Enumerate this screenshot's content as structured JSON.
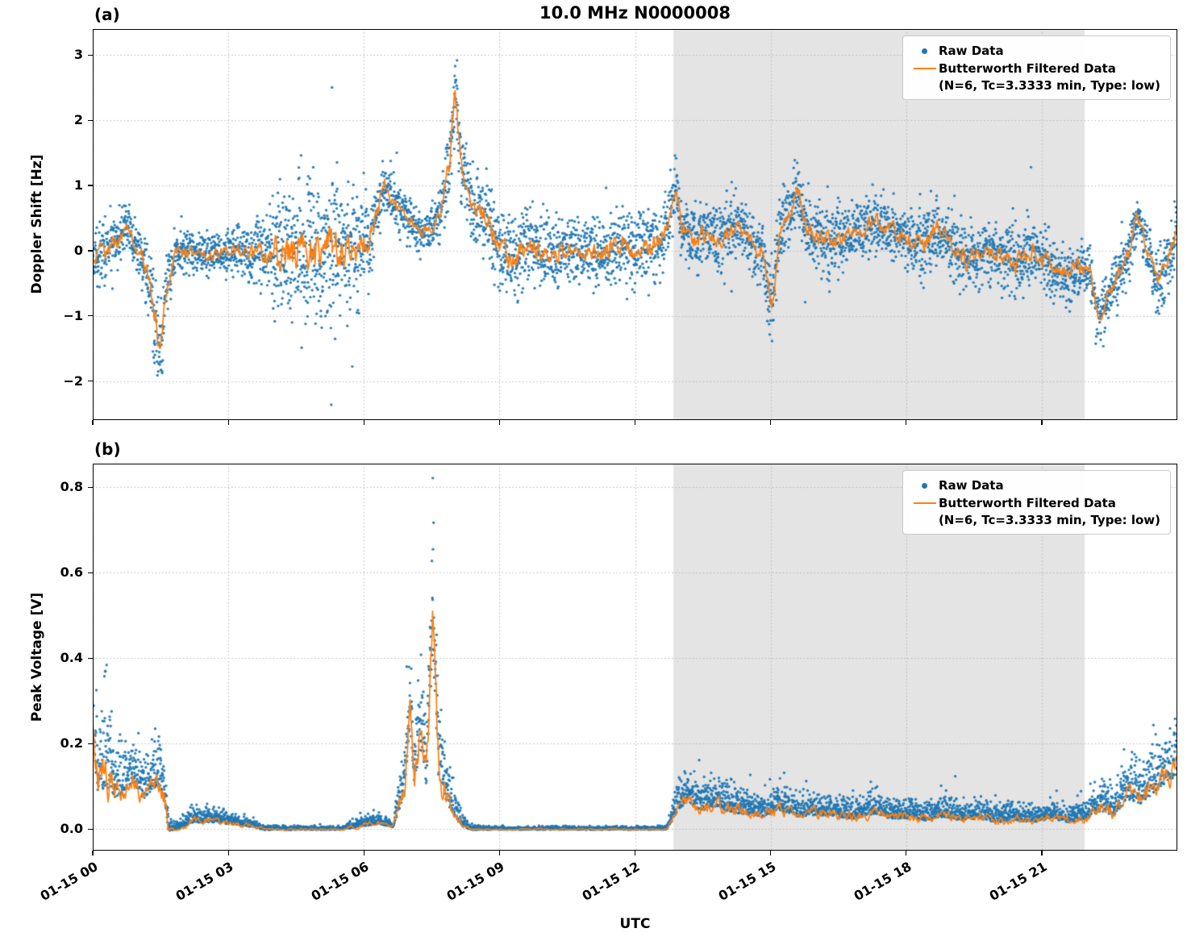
{
  "title": "10.0 MHz N0000008",
  "xlabel": "UTC",
  "legend": {
    "raw": "Raw Data",
    "filtered_line1": "Butterworth Filtered Data",
    "filtered_line2": "(N=6, Tc=3.3333 min, Type: low)"
  },
  "colors": {
    "raw": "#1f77b4",
    "filtered": "#ff7f0e",
    "shade": "#e4e4e4",
    "grid": "#b8b8b8",
    "axis": "#000000"
  },
  "chart_data": [
    {
      "type": "scatter",
      "panel_label": "(a)",
      "title": "10.0 MHz N0000008",
      "xlabel": "UTC",
      "ylabel": "Doppler Shift [Hz]",
      "x_unit": "hours since 01-15 00:00 UTC",
      "xlim": [
        0,
        24
      ],
      "ylim": [
        -2.6,
        3.4
      ],
      "yticks": [
        -2,
        -1,
        0,
        1,
        2,
        3
      ],
      "ytick_labels": [
        "−2",
        "−1",
        "0",
        "1",
        "2",
        "3"
      ],
      "x_ticks": [
        0,
        3,
        6,
        9,
        12,
        15,
        18,
        21
      ],
      "x_tick_labels": [
        "01-15 00",
        "01-15 03",
        "01-15 06",
        "01-15 09",
        "01-15 12",
        "01-15 15",
        "01-15 18",
        "01-15 21"
      ],
      "shaded_region": [
        12.85,
        21.95
      ],
      "grid": true,
      "legend_position": "upper right",
      "positive_only": false,
      "scatter_bounds": [
        -2.45,
        3.15
      ],
      "seed": 42,
      "n_points": 5200,
      "line_jitter": 0.5,
      "series": [
        {
          "name": "Raw Data",
          "kind": "scatter",
          "color": "#1f77b4",
          "marker_size": 1.7
        },
        {
          "name": "Butterworth Filtered Data (N=6, Tc=3.3333 min, Type: low)",
          "kind": "line",
          "color": "#ff7f0e"
        }
      ],
      "envelope_t_center_spread": [
        [
          0,
          -0.15,
          0.45
        ],
        [
          0.3,
          0,
          0.5
        ],
        [
          0.55,
          0.15,
          0.4
        ],
        [
          0.75,
          0.38,
          0.35
        ],
        [
          0.95,
          0.1,
          0.4
        ],
        [
          1.15,
          -0.2,
          0.5
        ],
        [
          1.35,
          -0.9,
          0.75
        ],
        [
          1.5,
          -1.55,
          0.7
        ],
        [
          1.65,
          -0.5,
          0.5
        ],
        [
          1.85,
          0,
          0.35
        ],
        [
          2.2,
          -0.05,
          0.3
        ],
        [
          2.7,
          -0.05,
          0.32
        ],
        [
          3.2,
          0,
          0.38
        ],
        [
          3.7,
          -0.05,
          0.5
        ],
        [
          4,
          0,
          0.85
        ],
        [
          4.3,
          0,
          1.1
        ],
        [
          4.7,
          0.05,
          1.2
        ],
        [
          5,
          0,
          1.2
        ],
        [
          5.4,
          0.05,
          1.1
        ],
        [
          5.8,
          0,
          0.95
        ],
        [
          6.1,
          0.15,
          0.7
        ],
        [
          6.3,
          0.6,
          0.5
        ],
        [
          6.45,
          1,
          0.4
        ],
        [
          6.6,
          0.85,
          0.4
        ],
        [
          6.8,
          0.6,
          0.35
        ],
        [
          7,
          0.5,
          0.35
        ],
        [
          7.25,
          0.3,
          0.3
        ],
        [
          7.5,
          0.35,
          0.32
        ],
        [
          7.7,
          0.55,
          0.45
        ],
        [
          7.9,
          1.4,
          0.7
        ],
        [
          8.02,
          2.35,
          0.75
        ],
        [
          8.15,
          1.35,
          0.6
        ],
        [
          8.3,
          0.9,
          0.55
        ],
        [
          8.5,
          0.6,
          0.5
        ],
        [
          8.75,
          0.45,
          0.6
        ],
        [
          9,
          0.1,
          0.7
        ],
        [
          9.25,
          -0.2,
          0.7
        ],
        [
          9.5,
          0,
          0.6
        ],
        [
          9.8,
          0.05,
          0.55
        ],
        [
          10.2,
          -0.05,
          0.55
        ],
        [
          10.6,
          0,
          0.5
        ],
        [
          11,
          -0.05,
          0.5
        ],
        [
          11.4,
          0,
          0.55
        ],
        [
          11.75,
          0.1,
          0.62
        ],
        [
          12.1,
          0.1,
          0.6
        ],
        [
          12.4,
          0.05,
          0.58
        ],
        [
          12.65,
          0.25,
          0.55
        ],
        [
          12.9,
          1,
          0.45
        ],
        [
          13.05,
          0.35,
          0.5
        ],
        [
          13.3,
          0.1,
          0.5
        ],
        [
          13.6,
          0.3,
          0.5
        ],
        [
          13.9,
          0.15,
          0.5
        ],
        [
          14.2,
          0.4,
          0.5
        ],
        [
          14.5,
          0.2,
          0.5
        ],
        [
          14.8,
          0,
          0.55
        ],
        [
          15.02,
          -0.9,
          0.55
        ],
        [
          15.2,
          0.3,
          0.5
        ],
        [
          15.42,
          0.5,
          0.5
        ],
        [
          15.58,
          1,
          0.5
        ],
        [
          15.8,
          0.3,
          0.5
        ],
        [
          16.2,
          0.15,
          0.5
        ],
        [
          16.6,
          0.2,
          0.5
        ],
        [
          17,
          0.3,
          0.5
        ],
        [
          17.3,
          0.45,
          0.45
        ],
        [
          17.65,
          0.3,
          0.45
        ],
        [
          18,
          0.2,
          0.45
        ],
        [
          18.4,
          0.1,
          0.5
        ],
        [
          18.7,
          0.35,
          0.5
        ],
        [
          19,
          0.1,
          0.5
        ],
        [
          19.4,
          -0.15,
          0.5
        ],
        [
          19.75,
          0,
          0.5
        ],
        [
          20.1,
          -0.1,
          0.5
        ],
        [
          20.45,
          -0.2,
          0.5
        ],
        [
          20.8,
          0,
          0.5
        ],
        [
          21.1,
          -0.2,
          0.5
        ],
        [
          21.45,
          -0.35,
          0.5
        ],
        [
          21.75,
          -0.3,
          0.45
        ],
        [
          22.05,
          -0.25,
          0.45
        ],
        [
          22.25,
          -1.05,
          0.42
        ],
        [
          22.5,
          -0.65,
          0.4
        ],
        [
          22.75,
          -0.3,
          0.4
        ],
        [
          22.95,
          0,
          0.38
        ],
        [
          23.1,
          0.55,
          0.35
        ],
        [
          23.3,
          0.1,
          0.4
        ],
        [
          23.55,
          -0.5,
          0.45
        ],
        [
          23.75,
          -0.25,
          0.45
        ],
        [
          24,
          0.3,
          0.4
        ]
      ]
    },
    {
      "type": "scatter",
      "panel_label": "(b)",
      "xlabel": "UTC",
      "ylabel": "Peak Voltage [V]",
      "x_unit": "hours since 01-15 00:00 UTC",
      "xlim": [
        0,
        24
      ],
      "ylim": [
        -0.05,
        0.855
      ],
      "yticks": [
        0,
        0.2,
        0.4,
        0.6,
        0.8
      ],
      "ytick_labels": [
        "0.0",
        "0.2",
        "0.4",
        "0.6",
        "0.8"
      ],
      "x_ticks": [
        0,
        3,
        6,
        9,
        12,
        15,
        18,
        21
      ],
      "x_tick_labels": [
        "01-15 00",
        "01-15 03",
        "01-15 06",
        "01-15 09",
        "01-15 12",
        "01-15 15",
        "01-15 18",
        "01-15 21"
      ],
      "shaded_region": [
        12.85,
        21.95
      ],
      "grid": true,
      "legend_position": "upper right",
      "positive_only": true,
      "scatter_bounds": [
        -0.004,
        0.83
      ],
      "seed": 77,
      "n_points": 5200,
      "line_jitter": 0.6,
      "series": [
        {
          "name": "Raw Data",
          "kind": "scatter",
          "color": "#1f77b4",
          "marker_size": 1.7
        },
        {
          "name": "Butterworth Filtered Data (N=6, Tc=3.3333 min, Type: low)",
          "kind": "line",
          "color": "#ff7f0e"
        }
      ],
      "envelope_t_center_spread": [
        [
          0,
          0.22,
          0.12
        ],
        [
          0.12,
          0.1,
          0.14
        ],
        [
          0.3,
          0.13,
          0.17
        ],
        [
          0.5,
          0.08,
          0.1
        ],
        [
          0.7,
          0.1,
          0.08
        ],
        [
          0.9,
          0.12,
          0.08
        ],
        [
          1.1,
          0.08,
          0.08
        ],
        [
          1.3,
          0.1,
          0.07
        ],
        [
          1.45,
          0.12,
          0.1
        ],
        [
          1.58,
          0.08,
          0.1
        ],
        [
          1.68,
          0,
          0.02
        ],
        [
          1.95,
          0.005,
          0.018
        ],
        [
          2.2,
          0.02,
          0.025
        ],
        [
          2.6,
          0.02,
          0.025
        ],
        [
          3,
          0.015,
          0.02
        ],
        [
          3.4,
          0.01,
          0.015
        ],
        [
          3.8,
          0,
          0.008
        ],
        [
          4.5,
          0,
          0.006
        ],
        [
          5.5,
          0,
          0.006
        ],
        [
          6,
          0.01,
          0.018
        ],
        [
          6.35,
          0.015,
          0.018
        ],
        [
          6.65,
          0.005,
          0.01
        ],
        [
          6.9,
          0.1,
          0.1
        ],
        [
          7.02,
          0.27,
          0.14
        ],
        [
          7.12,
          0.1,
          0.1
        ],
        [
          7.25,
          0.22,
          0.12
        ],
        [
          7.38,
          0.12,
          0.1
        ],
        [
          7.52,
          0.44,
          0.2
        ],
        [
          7.65,
          0.15,
          0.15
        ],
        [
          7.8,
          0.08,
          0.12
        ],
        [
          7.95,
          0.05,
          0.06
        ],
        [
          8.1,
          0.02,
          0.04
        ],
        [
          8.35,
          0,
          0.008
        ],
        [
          9,
          0,
          0.005
        ],
        [
          10,
          0,
          0.005
        ],
        [
          11,
          0,
          0.005
        ],
        [
          12,
          0,
          0.005
        ],
        [
          12.7,
          0,
          0.005
        ],
        [
          12.95,
          0.05,
          0.05
        ],
        [
          13.15,
          0.07,
          0.06
        ],
        [
          13.45,
          0.05,
          0.05
        ],
        [
          13.75,
          0.06,
          0.05
        ],
        [
          14.05,
          0.05,
          0.05
        ],
        [
          14.45,
          0.04,
          0.04
        ],
        [
          14.85,
          0.035,
          0.035
        ],
        [
          15.2,
          0.05,
          0.045
        ],
        [
          15.6,
          0.035,
          0.035
        ],
        [
          16,
          0.04,
          0.04
        ],
        [
          16.45,
          0.035,
          0.035
        ],
        [
          16.85,
          0.03,
          0.035
        ],
        [
          17.25,
          0.04,
          0.04
        ],
        [
          17.65,
          0.03,
          0.03
        ],
        [
          18.05,
          0.03,
          0.035
        ],
        [
          18.45,
          0.025,
          0.03
        ],
        [
          18.8,
          0.035,
          0.04
        ],
        [
          19.2,
          0.025,
          0.03
        ],
        [
          19.6,
          0.03,
          0.03
        ],
        [
          20,
          0.02,
          0.03
        ],
        [
          20.4,
          0.025,
          0.03
        ],
        [
          20.8,
          0.02,
          0.025
        ],
        [
          21.2,
          0.03,
          0.03
        ],
        [
          21.6,
          0.02,
          0.025
        ],
        [
          22,
          0.03,
          0.035
        ],
        [
          22.3,
          0.05,
          0.05
        ],
        [
          22.6,
          0.04,
          0.05
        ],
        [
          22.9,
          0.08,
          0.07
        ],
        [
          23.2,
          0.07,
          0.07
        ],
        [
          23.5,
          0.1,
          0.08
        ],
        [
          23.75,
          0.12,
          0.09
        ],
        [
          24,
          0.14,
          0.09
        ]
      ]
    }
  ]
}
